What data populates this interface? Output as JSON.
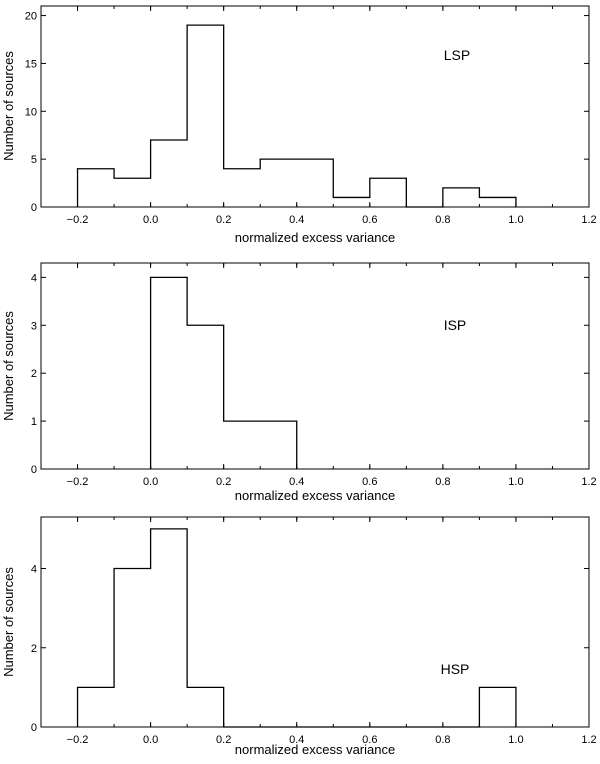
{
  "chart_data": [
    {
      "type": "histogram",
      "annotation": "LSP",
      "xlabel": "normalized excess variance",
      "ylabel": "Number of sources",
      "xlim": [
        -0.3,
        1.2
      ],
      "ylim": [
        0,
        21
      ],
      "xticks": [
        "−0.2",
        "0.0",
        "0.2",
        "0.4",
        "0.6",
        "0.8",
        "1.0",
        "1.2"
      ],
      "yticks": [
        "0",
        "5",
        "10",
        "15",
        "20"
      ],
      "bin_edges": [
        -0.2,
        -0.1,
        0.0,
        0.1,
        0.2,
        0.3,
        0.4,
        0.5,
        0.6,
        0.7,
        0.8,
        0.9,
        1.0
      ],
      "counts": [
        4,
        3,
        7,
        19,
        4,
        5,
        5,
        1,
        3,
        0,
        2,
        1
      ]
    },
    {
      "type": "histogram",
      "annotation": "ISP",
      "xlabel": "normalized excess variance",
      "ylabel": "Number of sources",
      "xlim": [
        -0.3,
        1.2
      ],
      "ylim": [
        0,
        4.3
      ],
      "xticks": [
        "−0.2",
        "0.0",
        "0.2",
        "0.4",
        "0.6",
        "0.8",
        "1.0",
        "1.2"
      ],
      "yticks": [
        "0",
        "1",
        "2",
        "3",
        "4"
      ],
      "bin_edges": [
        0.0,
        0.1,
        0.2,
        0.3,
        0.4
      ],
      "counts": [
        4,
        3,
        1,
        1
      ]
    },
    {
      "type": "histogram",
      "annotation": "HSP",
      "xlabel": "normalized excess variance",
      "ylabel": "Number of sources",
      "xlim": [
        -0.3,
        1.2
      ],
      "ylim": [
        0,
        5.3
      ],
      "xticks": [
        "−0.2",
        "0.0",
        "0.2",
        "0.4",
        "0.6",
        "0.8",
        "1.0",
        "1.2"
      ],
      "yticks": [
        "0",
        "2",
        "4"
      ],
      "bin_edges": [
        -0.2,
        -0.1,
        0.0,
        0.1,
        0.2,
        0.3,
        0.4,
        0.5,
        0.6,
        0.7,
        0.8,
        0.9,
        1.0
      ],
      "counts": [
        1,
        4,
        5,
        1,
        0,
        0,
        0,
        0,
        0,
        0,
        0,
        1
      ]
    }
  ]
}
